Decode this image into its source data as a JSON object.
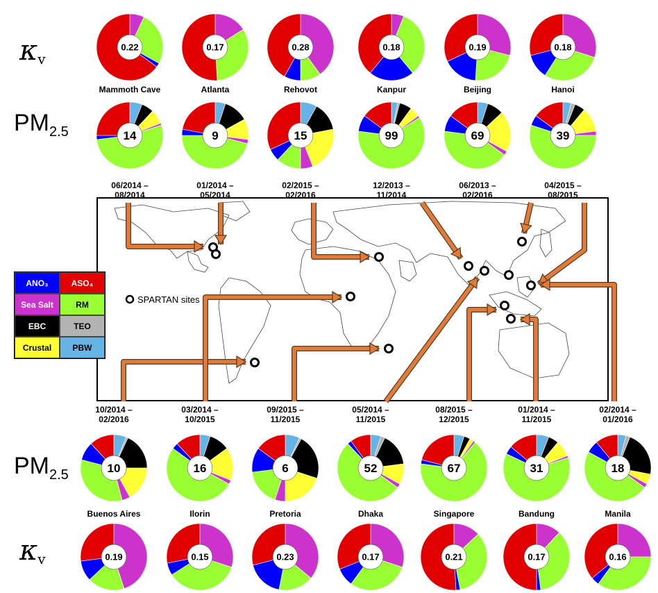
{
  "row_labels": {
    "kappa_symbol": "κ",
    "kappa_subscript": "v",
    "pm_text": "PM",
    "pm_subscript": "2.5"
  },
  "legend_caption": "SPARTAN sites",
  "colors": {
    "ANO3": "#0000ff",
    "ASO4": "#e00000",
    "Sea Salt": "#cc33cc",
    "RM": "#99ff33",
    "EBC": "#000000",
    "TEO": "#b3b3b3",
    "Crustal": "#ffff33",
    "PBW": "#66b3e6"
  },
  "legend_entries": [
    {
      "key": "ANO3",
      "label": "ANO₃"
    },
    {
      "key": "ASO4",
      "label": "ASO₄"
    },
    {
      "key": "Sea Salt",
      "label": "Sea Salt"
    },
    {
      "key": "RM",
      "label": "RM"
    },
    {
      "key": "EBC",
      "label": "EBC"
    },
    {
      "key": "TEO",
      "label": "TEO"
    },
    {
      "key": "Crustal",
      "label": "Crustal"
    },
    {
      "key": "PBW",
      "label": "PBW"
    }
  ],
  "chart_data": [
    {
      "type": "pie",
      "group": "top",
      "site": "Mammoth Cave",
      "dates": [
        "06/2014 –",
        "08/2014"
      ],
      "kappa": {
        "center": "0.22",
        "slices": [
          {
            "c": "Sea Salt",
            "v": 0.07
          },
          {
            "c": "RM",
            "v": 0.26
          },
          {
            "c": "ANO3",
            "v": 0.02
          },
          {
            "c": "ASO4",
            "v": 0.65
          }
        ]
      },
      "pm": {
        "center": "14",
        "slices": [
          {
            "c": "PBW",
            "v": 0.06
          },
          {
            "c": "EBC",
            "v": 0.06
          },
          {
            "c": "Crustal",
            "v": 0.07
          },
          {
            "c": "Sea Salt",
            "v": 0.01
          },
          {
            "c": "RM",
            "v": 0.53
          },
          {
            "c": "ANO3",
            "v": 0.02
          },
          {
            "c": "ASO4",
            "v": 0.25
          }
        ]
      }
    },
    {
      "type": "pie",
      "group": "top",
      "site": "Atlanta",
      "dates": [
        "01/2014 –",
        "05/2014"
      ],
      "kappa": {
        "center": "0.17",
        "slices": [
          {
            "c": "Sea Salt",
            "v": 0.16
          },
          {
            "c": "RM",
            "v": 0.33
          },
          {
            "c": "ASO4",
            "v": 0.51
          }
        ]
      },
      "pm": {
        "center": "9",
        "slices": [
          {
            "c": "PBW",
            "v": 0.05
          },
          {
            "c": "EBC",
            "v": 0.12
          },
          {
            "c": "Crustal",
            "v": 0.1
          },
          {
            "c": "Sea Salt",
            "v": 0.02
          },
          {
            "c": "RM",
            "v": 0.46
          },
          {
            "c": "ANO3",
            "v": 0.03
          },
          {
            "c": "ASO4",
            "v": 0.22
          }
        ]
      }
    },
    {
      "type": "pie",
      "group": "top",
      "site": "Rehovot",
      "dates": [
        "02/2015 –",
        "02/2016"
      ],
      "kappa": {
        "center": "0.28",
        "slices": [
          {
            "c": "Sea Salt",
            "v": 0.4
          },
          {
            "c": "RM",
            "v": 0.1
          },
          {
            "c": "ANO3",
            "v": 0.08
          },
          {
            "c": "ASO4",
            "v": 0.42
          }
        ]
      },
      "pm": {
        "center": "15",
        "slices": [
          {
            "c": "PBW",
            "v": 0.08
          },
          {
            "c": "EBC",
            "v": 0.14
          },
          {
            "c": "Crustal",
            "v": 0.22
          },
          {
            "c": "Sea Salt",
            "v": 0.06
          },
          {
            "c": "RM",
            "v": 0.12
          },
          {
            "c": "ANO3",
            "v": 0.06
          },
          {
            "c": "ASO4",
            "v": 0.32
          }
        ]
      }
    },
    {
      "type": "pie",
      "group": "top",
      "site": "Kanpur",
      "dates": [
        "12/2013 –",
        "11/2014"
      ],
      "kappa": {
        "center": "0.18",
        "slices": [
          {
            "c": "Sea Salt",
            "v": 0.06
          },
          {
            "c": "RM",
            "v": 0.33
          },
          {
            "c": "ANO3",
            "v": 0.22
          },
          {
            "c": "ASO4",
            "v": 0.39
          }
        ]
      },
      "pm": {
        "center": "99",
        "slices": [
          {
            "c": "PBW",
            "v": 0.03
          },
          {
            "c": "TEO",
            "v": 0.01
          },
          {
            "c": "EBC",
            "v": 0.06
          },
          {
            "c": "Crustal",
            "v": 0.05
          },
          {
            "c": "Sea Salt",
            "v": 0.01
          },
          {
            "c": "RM",
            "v": 0.61
          },
          {
            "c": "ANO3",
            "v": 0.08
          },
          {
            "c": "ASO4",
            "v": 0.15
          }
        ]
      }
    },
    {
      "type": "pie",
      "group": "top",
      "site": "Beijing",
      "dates": [
        "06/2013 –",
        "02/2016"
      ],
      "kappa": {
        "center": "0.19",
        "slices": [
          {
            "c": "Sea Salt",
            "v": 0.29
          },
          {
            "c": "RM",
            "v": 0.22
          },
          {
            "c": "ANO3",
            "v": 0.17
          },
          {
            "c": "ASO4",
            "v": 0.32
          }
        ]
      },
      "pm": {
        "center": "69",
        "slices": [
          {
            "c": "PBW",
            "v": 0.05
          },
          {
            "c": "EBC",
            "v": 0.08
          },
          {
            "c": "Crustal",
            "v": 0.2
          },
          {
            "c": "Sea Salt",
            "v": 0.02
          },
          {
            "c": "RM",
            "v": 0.42
          },
          {
            "c": "ANO3",
            "v": 0.08
          },
          {
            "c": "ASO4",
            "v": 0.15
          }
        ]
      }
    },
    {
      "type": "pie",
      "group": "top",
      "site": "Hanoi",
      "dates": [
        "04/2015 –",
        "08/2015"
      ],
      "kappa": {
        "center": "0.18",
        "slices": [
          {
            "c": "Sea Salt",
            "v": 0.3
          },
          {
            "c": "RM",
            "v": 0.29
          },
          {
            "c": "ANO3",
            "v": 0.12
          },
          {
            "c": "ASO4",
            "v": 0.29
          }
        ]
      },
      "pm": {
        "center": "39",
        "slices": [
          {
            "c": "PBW",
            "v": 0.04
          },
          {
            "c": "TEO",
            "v": 0.02
          },
          {
            "c": "EBC",
            "v": 0.05
          },
          {
            "c": "Crustal",
            "v": 0.12
          },
          {
            "c": "Sea Salt",
            "v": 0.02
          },
          {
            "c": "RM",
            "v": 0.55
          },
          {
            "c": "ANO3",
            "v": 0.05
          },
          {
            "c": "ASO4",
            "v": 0.15
          }
        ]
      }
    },
    {
      "type": "pie",
      "group": "bottom",
      "site": "Buenos Aires",
      "dates": [
        "10/2014 –",
        "02/2016"
      ],
      "kappa": {
        "center": "0.19",
        "slices": [
          {
            "c": "Sea Salt",
            "v": 0.45
          },
          {
            "c": "RM",
            "v": 0.18
          },
          {
            "c": "ANO3",
            "v": 0.1
          },
          {
            "c": "ASO4",
            "v": 0.27
          }
        ]
      },
      "pm": {
        "center": "10",
        "slices": [
          {
            "c": "PBW",
            "v": 0.06
          },
          {
            "c": "TEO",
            "v": 0.01
          },
          {
            "c": "EBC",
            "v": 0.18
          },
          {
            "c": "Crustal",
            "v": 0.17
          },
          {
            "c": "Sea Salt",
            "v": 0.04
          },
          {
            "c": "RM",
            "v": 0.33
          },
          {
            "c": "ANO3",
            "v": 0.09
          },
          {
            "c": "ASO4",
            "v": 0.12
          }
        ]
      }
    },
    {
      "type": "pie",
      "group": "bottom",
      "site": "Ilorin",
      "dates": [
        "03/2014 –",
        "10/2015"
      ],
      "kappa": {
        "center": "0.15",
        "slices": [
          {
            "c": "Sea Salt",
            "v": 0.3
          },
          {
            "c": "RM",
            "v": 0.36
          },
          {
            "c": "ANO3",
            "v": 0.06
          },
          {
            "c": "ASO4",
            "v": 0.28
          }
        ]
      },
      "pm": {
        "center": "16",
        "slices": [
          {
            "c": "PBW",
            "v": 0.05
          },
          {
            "c": "EBC",
            "v": 0.1
          },
          {
            "c": "Crustal",
            "v": 0.16
          },
          {
            "c": "Sea Salt",
            "v": 0.02
          },
          {
            "c": "RM",
            "v": 0.52
          },
          {
            "c": "ANO3",
            "v": 0.03
          },
          {
            "c": "ASO4",
            "v": 0.12
          }
        ]
      }
    },
    {
      "type": "pie",
      "group": "bottom",
      "site": "Pretoria",
      "dates": [
        "09/2015 –",
        "11/2015"
      ],
      "kappa": {
        "center": "0.23",
        "slices": [
          {
            "c": "Sea Salt",
            "v": 0.36
          },
          {
            "c": "RM",
            "v": 0.17
          },
          {
            "c": "ANO3",
            "v": 0.18
          },
          {
            "c": "ASO4",
            "v": 0.29
          }
        ]
      },
      "pm": {
        "center": "6",
        "slices": [
          {
            "c": "PBW",
            "v": 0.07
          },
          {
            "c": "TEO",
            "v": 0.01
          },
          {
            "c": "EBC",
            "v": 0.22
          },
          {
            "c": "Crustal",
            "v": 0.2
          },
          {
            "c": "Sea Salt",
            "v": 0.05
          },
          {
            "c": "RM",
            "v": 0.18
          },
          {
            "c": "ANO3",
            "v": 0.12
          },
          {
            "c": "ASO4",
            "v": 0.15
          }
        ]
      }
    },
    {
      "type": "pie",
      "group": "bottom",
      "site": "Dhaka",
      "dates": [
        "05/2014 –",
        "11/2015"
      ],
      "kappa": {
        "center": "0.17",
        "slices": [
          {
            "c": "Sea Salt",
            "v": 0.3
          },
          {
            "c": "RM",
            "v": 0.3
          },
          {
            "c": "ANO3",
            "v": 0.09
          },
          {
            "c": "ASO4",
            "v": 0.31
          }
        ]
      },
      "pm": {
        "center": "52",
        "slices": [
          {
            "c": "PBW",
            "v": 0.05
          },
          {
            "c": "TEO",
            "v": 0.02
          },
          {
            "c": "EBC",
            "v": 0.16
          },
          {
            "c": "Crustal",
            "v": 0.1
          },
          {
            "c": "Sea Salt",
            "v": 0.02
          },
          {
            "c": "RM",
            "v": 0.53
          },
          {
            "c": "ANO3",
            "v": 0.02
          },
          {
            "c": "ASO4",
            "v": 0.1
          }
        ]
      }
    },
    {
      "type": "pie",
      "group": "bottom",
      "site": "Singapore",
      "dates": [
        "08/2015 –",
        "12/2015"
      ],
      "kappa": {
        "center": "0.21",
        "slices": [
          {
            "c": "Sea Salt",
            "v": 0.13
          },
          {
            "c": "RM",
            "v": 0.34
          },
          {
            "c": "ANO3",
            "v": 0.02
          },
          {
            "c": "ASO4",
            "v": 0.51
          }
        ]
      },
      "pm": {
        "center": "67",
        "slices": [
          {
            "c": "PBW",
            "v": 0.05
          },
          {
            "c": "EBC",
            "v": 0.03
          },
          {
            "c": "Crustal",
            "v": 0.02
          },
          {
            "c": "Sea Salt",
            "v": 0.01
          },
          {
            "c": "RM",
            "v": 0.66
          },
          {
            "c": "ANO3",
            "v": 0.02
          },
          {
            "c": "ASO4",
            "v": 0.21
          }
        ]
      }
    },
    {
      "type": "pie",
      "group": "bottom",
      "site": "Bandung",
      "dates": [
        "01/2014 –",
        "11/2015"
      ],
      "kappa": {
        "center": "0.17",
        "slices": [
          {
            "c": "Sea Salt",
            "v": 0.12
          },
          {
            "c": "RM",
            "v": 0.36
          },
          {
            "c": "ANO3",
            "v": 0.02
          },
          {
            "c": "ASO4",
            "v": 0.5
          }
        ]
      },
      "pm": {
        "center": "31",
        "slices": [
          {
            "c": "PBW",
            "v": 0.06
          },
          {
            "c": "EBC",
            "v": 0.05
          },
          {
            "c": "Crustal",
            "v": 0.08
          },
          {
            "c": "Sea Salt",
            "v": 0.01
          },
          {
            "c": "RM",
            "v": 0.62
          },
          {
            "c": "ANO3",
            "v": 0.04
          },
          {
            "c": "ASO4",
            "v": 0.14
          }
        ]
      }
    },
    {
      "type": "pie",
      "group": "bottom",
      "site": "Manila",
      "dates": [
        "02/2014 –",
        "01/2016"
      ],
      "kappa": {
        "center": "0.16",
        "slices": [
          {
            "c": "Sea Salt",
            "v": 0.25
          },
          {
            "c": "RM",
            "v": 0.35
          },
          {
            "c": "ANO3",
            "v": 0.04
          },
          {
            "c": "ASO4",
            "v": 0.36
          }
        ]
      },
      "pm": {
        "center": "18",
        "slices": [
          {
            "c": "PBW",
            "v": 0.04
          },
          {
            "c": "TEO",
            "v": 0.02
          },
          {
            "c": "EBC",
            "v": 0.22
          },
          {
            "c": "Crustal",
            "v": 0.05
          },
          {
            "c": "Sea Salt",
            "v": 0.02
          },
          {
            "c": "RM",
            "v": 0.48
          },
          {
            "c": "ANO3",
            "v": 0.06
          },
          {
            "c": "ASO4",
            "v": 0.11
          }
        ]
      }
    }
  ]
}
